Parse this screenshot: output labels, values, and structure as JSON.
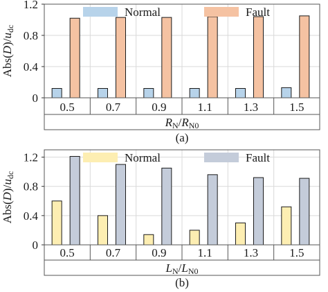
{
  "chart_data": [
    {
      "type": "bar",
      "caption": "(a)",
      "ylabel": {
        "main": "Abs(",
        "var": "D",
        "mid": ")/",
        "base": "u",
        "sub": "dc"
      },
      "xlabel": {
        "num": "R",
        "num_sub": "N",
        "den": "R",
        "den_sub": "N0"
      },
      "categories": [
        "0.5",
        "0.7",
        "0.9",
        "1.1",
        "1.3",
        "1.5"
      ],
      "yticks": [
        "0",
        "0.4",
        "0.8",
        "1.2"
      ],
      "ylim": [
        0,
        1.2
      ],
      "grid": true,
      "legend_position": "top",
      "series": [
        {
          "name": "Normal",
          "values": [
            0.12,
            0.12,
            0.12,
            0.12,
            0.12,
            0.13
          ]
        },
        {
          "name": "Fault",
          "values": [
            1.02,
            1.03,
            1.03,
            1.04,
            1.04,
            1.05
          ]
        }
      ],
      "colors": {
        "Normal": "#b7d3ea",
        "Fault": "#f5c2a2",
        "edge": "#1a1a1a",
        "grid": "#d9d9d9"
      }
    },
    {
      "type": "bar",
      "caption": "(b)",
      "ylabel": {
        "main": "Abs(",
        "var": "D",
        "mid": ")/",
        "base": "u",
        "sub": "dc"
      },
      "xlabel": {
        "num": "L",
        "num_sub": "N",
        "den": "L",
        "den_sub": "N0"
      },
      "categories": [
        "0.5",
        "0.7",
        "0.9",
        "1.1",
        "1.3",
        "1.5"
      ],
      "yticks": [
        "0",
        "0.4",
        "0.8",
        "1.2"
      ],
      "ylim": [
        0,
        1.3
      ],
      "grid": true,
      "legend_position": "top",
      "series": [
        {
          "name": "Normal",
          "values": [
            0.6,
            0.4,
            0.14,
            0.2,
            0.3,
            0.52
          ]
        },
        {
          "name": "Fault",
          "values": [
            1.21,
            1.1,
            1.05,
            0.96,
            0.92,
            0.91
          ]
        }
      ],
      "colors": {
        "Normal": "#fdeeb2",
        "Fault": "#c4ccda",
        "edge": "#1a1a1a",
        "grid": "#d9d9d9"
      }
    }
  ]
}
